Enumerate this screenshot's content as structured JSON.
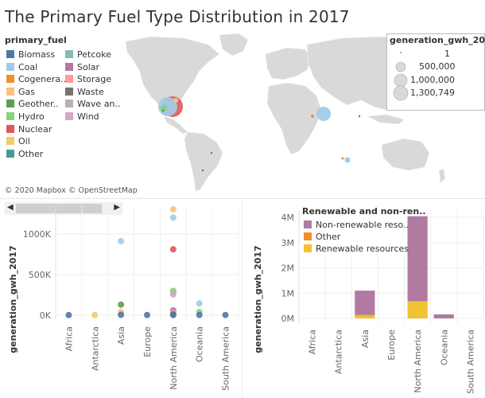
{
  "title": "The Primary Fuel Type Distribution in 2017",
  "attribution": "© 2020 Mapbox © OpenStreetMap",
  "fuel_legend": {
    "title": "primary_fuel",
    "items": [
      {
        "label": "Biomass",
        "color": "#4e79a7"
      },
      {
        "label": "Coal",
        "color": "#a0cbe8"
      },
      {
        "label": "Cogenera..",
        "color": "#f28e2b"
      },
      {
        "label": "Gas",
        "color": "#ffbe7d"
      },
      {
        "label": "Geother..",
        "color": "#59a14f"
      },
      {
        "label": "Hydro",
        "color": "#8cd17d"
      },
      {
        "label": "Nuclear",
        "color": "#e15759"
      },
      {
        "label": "Oil",
        "color": "#f1ce63"
      },
      {
        "label": "Other",
        "color": "#499894"
      },
      {
        "label": "Petcoke",
        "color": "#86bcb6"
      },
      {
        "label": "Solar",
        "color": "#b07aa1"
      },
      {
        "label": "Storage",
        "color": "#ff9d9a"
      },
      {
        "label": "Waste",
        "color": "#79706e"
      },
      {
        "label": "Wave an..",
        "color": "#bab0ac"
      },
      {
        "label": "Wind",
        "color": "#d4a6c8"
      }
    ]
  },
  "size_legend": {
    "title": "generation_gwh_2017",
    "items": [
      "1",
      "500,000",
      "1,000,000",
      "1,300,749"
    ]
  },
  "chart_data": [
    {
      "type": "scatter",
      "ylabel": "generation_gwh_2017",
      "categories": [
        "Africa",
        "Antarctica",
        "Asia",
        "Europe",
        "North America",
        "Oceania",
        "South America"
      ],
      "ylim": [
        0,
        1350000
      ],
      "yticks": [
        {
          "value": 0,
          "label": "0K"
        },
        {
          "value": 500000,
          "label": "500K"
        },
        {
          "value": 1000000,
          "label": "1000K"
        }
      ],
      "points": [
        {
          "category": "Africa",
          "y": 2000,
          "fuel": "Biomass"
        },
        {
          "category": "Antarctica",
          "y": 2000,
          "fuel": "Oil"
        },
        {
          "category": "Asia",
          "y": 910000,
          "fuel": "Coal"
        },
        {
          "category": "Asia",
          "y": 130000,
          "fuel": "Geother.."
        },
        {
          "category": "Asia",
          "y": 40000,
          "fuel": "Gas"
        },
        {
          "category": "Asia",
          "y": 5000,
          "fuel": "Biomass"
        },
        {
          "category": "Europe",
          "y": 3000,
          "fuel": "Biomass"
        },
        {
          "category": "North America",
          "y": 1300749,
          "fuel": "Gas"
        },
        {
          "category": "North America",
          "y": 1200000,
          "fuel": "Coal"
        },
        {
          "category": "North America",
          "y": 810000,
          "fuel": "Nuclear"
        },
        {
          "category": "North America",
          "y": 300000,
          "fuel": "Hydro"
        },
        {
          "category": "North America",
          "y": 280000,
          "fuel": "Hydro"
        },
        {
          "category": "North America",
          "y": 255000,
          "fuel": "Wind"
        },
        {
          "category": "North America",
          "y": 60000,
          "fuel": "Solar"
        },
        {
          "category": "North America",
          "y": 30000,
          "fuel": "Storage"
        },
        {
          "category": "North America",
          "y": 10000,
          "fuel": "Waste"
        },
        {
          "category": "North America",
          "y": 3000,
          "fuel": "Biomass"
        },
        {
          "category": "Oceania",
          "y": 145000,
          "fuel": "Coal"
        },
        {
          "category": "Oceania",
          "y": 40000,
          "fuel": "Hydro"
        },
        {
          "category": "Oceania",
          "y": 3000,
          "fuel": "Biomass"
        },
        {
          "category": "South America",
          "y": 3000,
          "fuel": "Biomass"
        }
      ]
    },
    {
      "type": "bar",
      "stacked": true,
      "ylabel": "generation_gwh_2017",
      "categories": [
        "Africa",
        "Antarctica",
        "Asia",
        "Europe",
        "North America",
        "Oceania",
        "South America"
      ],
      "ylim": [
        0,
        4100000
      ],
      "yticks": [
        {
          "value": 0,
          "label": "0M"
        },
        {
          "value": 1000000,
          "label": "1M"
        },
        {
          "value": 2000000,
          "label": "2M"
        },
        {
          "value": 3000000,
          "label": "3M"
        },
        {
          "value": 4000000,
          "label": "4M"
        }
      ],
      "legend_title": "Renewable and non-ren..",
      "series": [
        {
          "name": "Renewable resources",
          "color": "#f1c232",
          "values": [
            0,
            0,
            110000,
            0,
            680000,
            0,
            0
          ]
        },
        {
          "name": "Other",
          "color": "#f28e2b",
          "values": [
            0,
            0,
            40000,
            0,
            0,
            0,
            0
          ]
        },
        {
          "name": "Non-renewable reso..",
          "color": "#b07aa1",
          "values": [
            0,
            0,
            950000,
            0,
            3370000,
            160000,
            0
          ]
        }
      ]
    }
  ]
}
